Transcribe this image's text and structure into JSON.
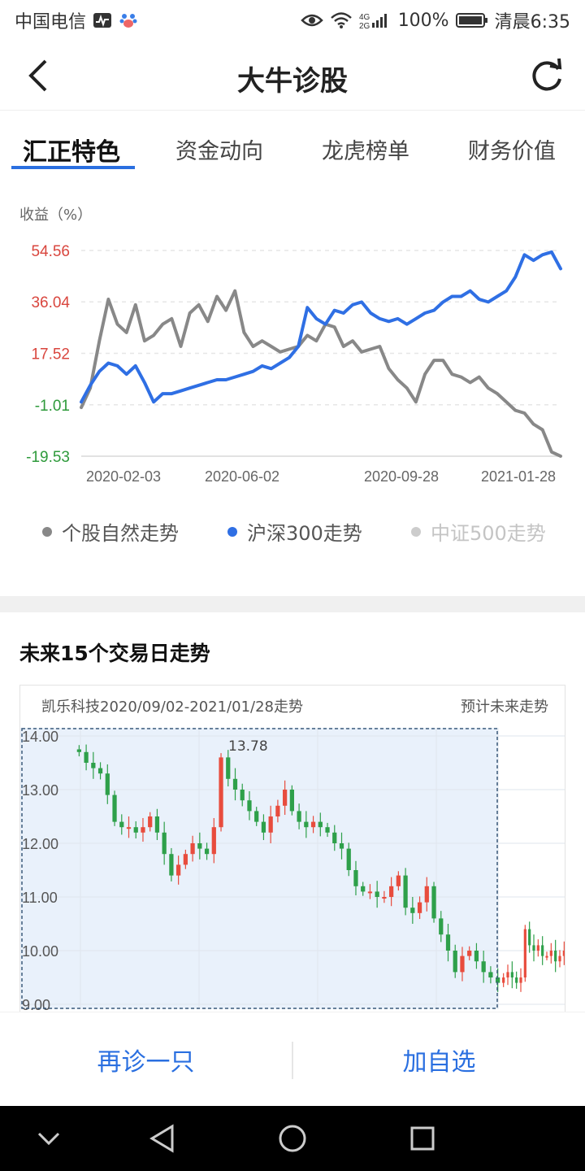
{
  "status_bar": {
    "carrier": "中国电信",
    "battery": "100%",
    "time": "清晨6:35",
    "network_top": "4G",
    "network_bottom": "2G"
  },
  "header": {
    "title": "大牛诊股"
  },
  "tabs": [
    {
      "label": "汇正特色",
      "active": true
    },
    {
      "label": "资金动向",
      "active": false
    },
    {
      "label": "龙虎榜单",
      "active": false
    },
    {
      "label": "财务价值",
      "active": false
    }
  ],
  "return_chart": {
    "ylabel": "收益（%）",
    "y_ticks": [
      "54.56",
      "36.04",
      "17.52",
      "-1.01",
      "-19.53"
    ],
    "x_ticks": [
      "2020-02-03",
      "2020-06-02",
      "2020-09-28",
      "2021-01-28"
    ],
    "legend": [
      {
        "label": "个股自然走势",
        "color": "#888888"
      },
      {
        "label": "沪深300走势",
        "color": "#2f6fe4"
      },
      {
        "label": "中证500走势",
        "color": "#c8c8c8"
      }
    ]
  },
  "forecast": {
    "section_title": "未来15个交易日走势",
    "period_label": "凯乐科技2020/09/02-2021/01/28走势",
    "future_label": "预计未来走势",
    "y_ticks": [
      "14.00",
      "13.00",
      "12.00",
      "11.00",
      "10.00",
      "9.00"
    ],
    "max_label": "13.78"
  },
  "actions": {
    "rediagnose": "再诊一只",
    "add_watch": "加自选"
  },
  "chart_data": [
    {
      "type": "line",
      "ylabel": "收益（%）",
      "ylim": [
        -19.53,
        54.56
      ],
      "x_ticks": [
        "2020-02-03",
        "2020-06-02",
        "2020-09-28",
        "2021-01-28"
      ],
      "grid": true,
      "legend_position": "bottom",
      "series": [
        {
          "name": "个股自然走势",
          "color": "#888888",
          "values": [
            -2,
            5,
            22,
            37,
            28,
            25,
            35,
            22,
            24,
            28,
            30,
            20,
            32,
            35,
            29,
            38,
            33,
            40,
            25,
            20,
            22,
            20,
            18,
            19,
            20,
            24,
            22,
            28,
            27,
            20,
            22,
            18,
            19,
            20,
            12,
            8,
            5,
            0,
            10,
            15,
            15,
            10,
            9,
            7,
            9,
            5,
            3,
            0,
            -3,
            -4,
            -8,
            -10,
            -18,
            -19.5
          ]
        },
        {
          "name": "沪深300走势",
          "color": "#2f6fe4",
          "values": [
            0,
            6,
            11,
            14,
            13,
            10,
            13,
            7,
            0,
            3,
            3,
            4,
            5,
            6,
            7,
            8,
            8,
            9,
            10,
            11,
            13,
            12,
            14,
            16,
            20,
            34,
            30,
            28,
            33,
            32,
            35,
            36,
            32,
            30,
            29,
            30,
            28,
            30,
            32,
            33,
            36,
            38,
            38,
            40,
            37,
            36,
            38,
            40,
            45,
            53,
            51,
            53,
            54,
            48
          ]
        }
      ]
    },
    {
      "type": "candlestick",
      "title": "凯乐科技2020/09/02-2021/01/28走势",
      "ylim": [
        9.0,
        14.0
      ],
      "y_ticks": [
        "14.00",
        "13.00",
        "12.00",
        "11.00",
        "10.00",
        "9.00"
      ],
      "grid": true,
      "annotations": [
        "13.78",
        "预计未来走势"
      ],
      "series": [
        {
          "name": "historical",
          "values": [
            13.7,
            13.5,
            13.4,
            13.3,
            12.9,
            12.4,
            12.3,
            12.3,
            12.2,
            12.3,
            12.5,
            12.2,
            11.8,
            11.4,
            11.6,
            11.8,
            12.0,
            11.9,
            11.8,
            12.3,
            13.6,
            13.2,
            13.0,
            12.8,
            12.6,
            12.4,
            12.2,
            12.5,
            12.7,
            13.0,
            12.6,
            12.4,
            12.3,
            12.4,
            12.3,
            12.2,
            12.0,
            11.9,
            11.5,
            11.2,
            11.1,
            11.1,
            11.0,
            11.0,
            11.2,
            11.4,
            10.8,
            10.7,
            10.9,
            11.2,
            10.6,
            10.3,
            10.0,
            9.6,
            9.9,
            10.0,
            9.8,
            9.6,
            9.5,
            9.4
          ]
        },
        {
          "name": "forecast",
          "values": [
            9.5,
            9.6,
            9.5,
            9.4,
            9.5,
            10.4,
            10.1,
            10.0,
            10.1,
            9.9,
            9.9,
            10.0,
            9.8,
            9.9,
            10.0
          ]
        }
      ]
    }
  ]
}
